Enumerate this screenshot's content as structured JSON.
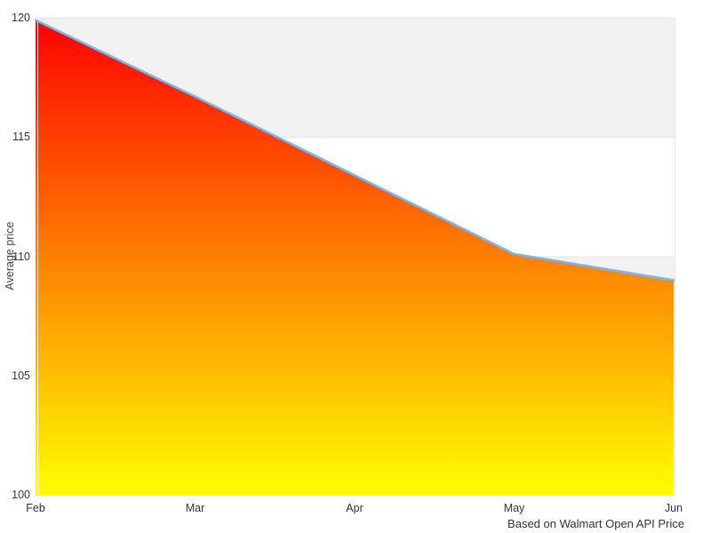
{
  "chart_data": {
    "type": "area",
    "title": "",
    "categories": [
      "Feb",
      "Mar",
      "Apr",
      "May",
      "Jun"
    ],
    "series": [
      {
        "name": "Average price",
        "values": [
          119.9,
          116.7,
          113.4,
          110.1,
          109.0
        ]
      }
    ],
    "xlabel": "",
    "ylabel": "Average price",
    "ylim": [
      100,
      120
    ],
    "yticks": [
      100,
      105,
      110,
      115,
      120
    ],
    "ytick_labels": [
      "100",
      "105",
      "110",
      "115",
      "120"
    ],
    "caption": "Based on Walmart Open API Price",
    "legend_position": "none",
    "grid": {
      "horizontal_gridlines": true,
      "alternating_gray_bands": [
        [
          105,
          110
        ],
        [
          115,
          120
        ]
      ]
    },
    "colors": {
      "line": "#7cb5ec",
      "area_gradient_top": "#ff0000",
      "area_gradient_bottom": "#ffff00",
      "band": "#f2f2f2",
      "gridline": "#e6e6e6",
      "tick_text": "#333333",
      "axis_title_text": "#444444",
      "caption_text": "#333333",
      "background": "#ffffff"
    }
  }
}
